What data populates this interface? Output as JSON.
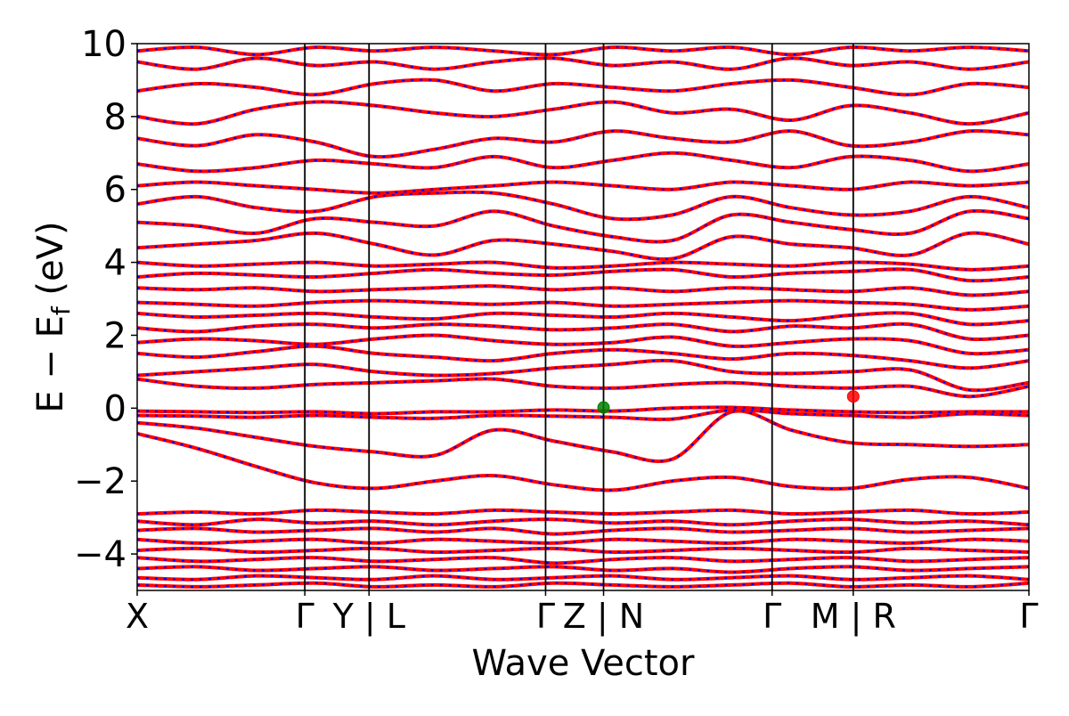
{
  "chart_data": {
    "type": "line",
    "title": "",
    "xlabel": "Wave Vector",
    "ylabel": "E − E_f (eV)",
    "ylabel_parts": {
      "main": "E − E",
      "sub": "f",
      "unit": " (eV)"
    },
    "ylim": [
      -5,
      10
    ],
    "yticks": [
      -4,
      -2,
      0,
      2,
      4,
      6,
      8,
      10
    ],
    "ytick_labels": [
      "−4",
      "−2",
      "0",
      "2",
      "4",
      "6",
      "8",
      "10"
    ],
    "xlim": [
      0,
      1
    ],
    "kpoint_positions": [
      0.0,
      0.188,
      0.26,
      0.458,
      0.523,
      0.712,
      0.803,
      1.0
    ],
    "kpoint_labels": [
      "X",
      "Γ",
      "Y | L",
      "Γ",
      "Z | N",
      "Γ",
      "M | R",
      "Γ"
    ],
    "grid": false,
    "legend": "none",
    "colors": {
      "band_main": "#ff0000",
      "band_dash": "#0000ff",
      "vbm_marker": "#008000",
      "cbm_marker": "#ff0000"
    },
    "markers": [
      {
        "name": "VBM",
        "x": 0.523,
        "y": 0.02,
        "color": "#008000"
      },
      {
        "name": "CBM",
        "x": 0.803,
        "y": 0.32,
        "color": "#ff0000"
      }
    ],
    "series": [
      {
        "y": [
          -0.7,
          -1.1,
          -1.6,
          -2.05,
          -2.2,
          -2.0,
          -1.85,
          -2.1,
          -2.25,
          -2.0,
          -1.9,
          -2.15,
          -2.2,
          -1.95,
          -1.9,
          -2.2
        ]
      },
      {
        "y": [
          -0.4,
          -0.55,
          -0.8,
          -1.05,
          -1.2,
          -1.3,
          -0.6,
          -0.9,
          -1.2,
          -1.4,
          -0.1,
          -0.6,
          -0.95,
          -1.0,
          -1.05,
          -1.0
        ]
      },
      {
        "y": [
          -0.2,
          -0.22,
          -0.25,
          -0.2,
          -0.25,
          -0.28,
          -0.2,
          -0.22,
          -0.25,
          -0.3,
          -0.05,
          -0.15,
          -0.2,
          -0.25,
          -0.15,
          -0.2
        ]
      },
      {
        "y": [
          -0.08,
          -0.1,
          -0.12,
          -0.1,
          -0.15,
          -0.1,
          -0.1,
          -0.05,
          -0.08,
          0.0,
          0.02,
          -0.05,
          -0.1,
          -0.12,
          -0.1,
          -0.1
        ]
      },
      {
        "y": [
          0.8,
          0.6,
          0.55,
          0.65,
          0.7,
          0.75,
          0.8,
          0.6,
          0.55,
          0.65,
          0.7,
          0.6,
          0.55,
          0.6,
          0.32,
          0.6
        ]
      },
      {
        "y": [
          0.9,
          1.0,
          1.1,
          1.2,
          1.0,
          0.9,
          0.95,
          1.1,
          1.2,
          1.3,
          1.0,
          0.95,
          1.0,
          1.05,
          0.5,
          0.7
        ]
      },
      {
        "y": [
          1.5,
          1.4,
          1.55,
          1.7,
          1.5,
          1.4,
          1.3,
          1.5,
          1.6,
          1.5,
          1.35,
          1.5,
          1.45,
          1.3,
          1.1,
          1.3
        ]
      },
      {
        "y": [
          1.8,
          1.9,
          1.85,
          1.75,
          1.9,
          2.0,
          1.85,
          1.75,
          1.8,
          1.95,
          1.7,
          1.8,
          1.9,
          1.85,
          1.5,
          1.6
        ]
      },
      {
        "y": [
          2.2,
          2.1,
          2.25,
          2.3,
          2.2,
          2.3,
          2.25,
          2.15,
          2.2,
          2.3,
          2.1,
          2.25,
          2.2,
          2.3,
          1.9,
          2.0
        ]
      },
      {
        "y": [
          2.6,
          2.5,
          2.55,
          2.6,
          2.5,
          2.45,
          2.6,
          2.55,
          2.5,
          2.6,
          2.5,
          2.4,
          2.55,
          2.6,
          2.3,
          2.4
        ]
      },
      {
        "y": [
          2.9,
          2.85,
          2.8,
          2.9,
          2.95,
          2.9,
          2.85,
          2.9,
          2.8,
          2.85,
          2.9,
          2.95,
          2.9,
          2.85,
          2.7,
          2.8
        ]
      },
      {
        "y": [
          3.3,
          3.25,
          3.3,
          3.2,
          3.25,
          3.3,
          3.35,
          3.25,
          3.3,
          3.2,
          3.3,
          3.25,
          3.2,
          3.3,
          3.1,
          3.2
        ]
      },
      {
        "y": [
          3.6,
          3.7,
          3.65,
          3.6,
          3.7,
          3.8,
          3.7,
          3.65,
          3.75,
          3.8,
          3.6,
          3.7,
          3.75,
          3.8,
          3.5,
          3.6
        ]
      },
      {
        "y": [
          4.0,
          3.9,
          3.95,
          4.0,
          3.9,
          3.95,
          4.0,
          3.85,
          3.9,
          4.0,
          3.95,
          3.9,
          4.0,
          3.95,
          3.8,
          3.9
        ]
      },
      {
        "y": [
          4.4,
          4.5,
          4.6,
          4.8,
          4.5,
          4.2,
          4.6,
          4.5,
          4.3,
          4.1,
          4.7,
          4.5,
          4.4,
          4.2,
          4.8,
          4.5
        ]
      },
      {
        "y": [
          5.1,
          5.0,
          4.8,
          5.2,
          5.1,
          5.0,
          5.4,
          5.0,
          4.7,
          4.6,
          5.3,
          5.1,
          4.9,
          4.8,
          5.4,
          5.2
        ]
      },
      {
        "y": [
          5.6,
          5.8,
          5.5,
          5.4,
          5.8,
          5.9,
          5.9,
          5.6,
          5.2,
          5.3,
          5.8,
          5.5,
          5.3,
          5.4,
          5.8,
          5.5
        ]
      },
      {
        "y": [
          6.1,
          6.2,
          6.1,
          6.0,
          5.9,
          6.0,
          6.1,
          6.2,
          6.1,
          6.0,
          6.2,
          6.1,
          6.0,
          6.2,
          6.1,
          6.2
        ]
      },
      {
        "y": [
          6.7,
          6.5,
          6.6,
          6.8,
          6.7,
          6.6,
          6.9,
          6.6,
          6.8,
          7.0,
          6.8,
          6.6,
          6.9,
          6.8,
          6.5,
          6.7
        ]
      },
      {
        "y": [
          7.4,
          7.2,
          7.5,
          7.3,
          6.9,
          7.1,
          7.4,
          7.3,
          7.6,
          7.4,
          7.3,
          7.6,
          7.2,
          7.3,
          7.6,
          7.5
        ]
      },
      {
        "y": [
          8.0,
          7.8,
          8.2,
          8.4,
          8.3,
          8.1,
          8.0,
          8.2,
          8.4,
          8.1,
          8.2,
          7.9,
          8.3,
          8.1,
          7.8,
          8.1
        ]
      },
      {
        "y": [
          8.7,
          8.9,
          8.8,
          8.6,
          8.9,
          9.0,
          8.7,
          8.9,
          8.8,
          8.7,
          8.9,
          9.0,
          8.8,
          8.6,
          8.9,
          8.8
        ]
      },
      {
        "y": [
          9.5,
          9.3,
          9.6,
          9.4,
          9.5,
          9.3,
          9.5,
          9.6,
          9.4,
          9.5,
          9.3,
          9.6,
          9.4,
          9.5,
          9.3,
          9.5
        ]
      },
      {
        "y": [
          9.8,
          9.9,
          9.7,
          9.9,
          9.8,
          9.9,
          9.8,
          9.7,
          9.9,
          9.8,
          9.9,
          9.7,
          9.9,
          9.8,
          9.9,
          9.8
        ]
      },
      {
        "y": [
          -2.9,
          -2.85,
          -2.9,
          -2.8,
          -2.85,
          -2.9,
          -2.8,
          -2.85,
          -2.9,
          -2.85,
          -2.8,
          -2.9,
          -2.85,
          -2.8,
          -2.9,
          -2.85
        ]
      },
      {
        "y": [
          -3.1,
          -3.2,
          -3.05,
          -3.15,
          -3.1,
          -3.2,
          -3.1,
          -3.05,
          -3.15,
          -3.1,
          -3.2,
          -3.1,
          -3.05,
          -3.15,
          -3.1,
          -3.2
        ]
      },
      {
        "y": [
          -3.35,
          -3.3,
          -3.4,
          -3.35,
          -3.3,
          -3.4,
          -3.3,
          -3.45,
          -3.35,
          -3.3,
          -3.4,
          -3.35,
          -3.3,
          -3.4,
          -3.35,
          -3.3
        ]
      },
      {
        "y": [
          -3.6,
          -3.7,
          -3.65,
          -3.6,
          -3.7,
          -3.6,
          -3.65,
          -3.7,
          -3.6,
          -3.65,
          -3.7,
          -3.6,
          -3.65,
          -3.7,
          -3.6,
          -3.65
        ]
      },
      {
        "y": [
          -3.9,
          -3.85,
          -3.95,
          -3.9,
          -3.85,
          -3.95,
          -3.9,
          -3.85,
          -3.95,
          -3.9,
          -3.85,
          -3.9,
          -3.95,
          -3.85,
          -3.9,
          -3.95
        ]
      },
      {
        "y": [
          -4.1,
          -4.2,
          -4.15,
          -4.1,
          -4.2,
          -4.15,
          -4.1,
          -4.25,
          -4.15,
          -4.1,
          -4.2,
          -4.15,
          -4.1,
          -4.2,
          -4.15,
          -4.1
        ]
      },
      {
        "y": [
          -4.4,
          -4.35,
          -4.45,
          -4.4,
          -4.35,
          -4.45,
          -4.4,
          -4.35,
          -4.45,
          -4.4,
          -4.5,
          -4.4,
          -4.35,
          -4.45,
          -4.4,
          -4.35
        ]
      },
      {
        "y": [
          -4.65,
          -4.7,
          -4.6,
          -4.65,
          -4.7,
          -4.6,
          -4.7,
          -4.65,
          -4.6,
          -4.7,
          -4.65,
          -4.6,
          -4.7,
          -4.65,
          -4.6,
          -4.7
        ]
      },
      {
        "y": [
          -4.85,
          -4.9,
          -4.85,
          -4.8,
          -4.9,
          -4.85,
          -4.9,
          -4.8,
          -4.85,
          -4.9,
          -4.85,
          -4.8,
          -4.9,
          -4.85,
          -4.9,
          -4.8
        ]
      }
    ]
  }
}
